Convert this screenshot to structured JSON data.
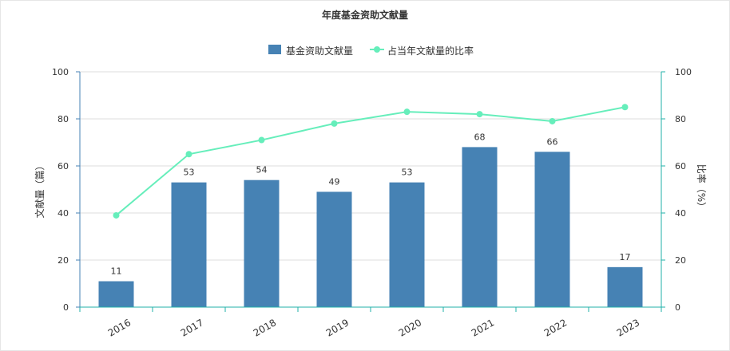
{
  "chart_data": {
    "type": "bar",
    "title": "年度基金资助文献量",
    "categories": [
      "2016",
      "2017",
      "2018",
      "2019",
      "2020",
      "2021",
      "2022",
      "2023"
    ],
    "series": [
      {
        "name": "基金资助文献量",
        "type": "bar",
        "axis": "left",
        "color": "#4682b4",
        "values": [
          11,
          53,
          54,
          49,
          53,
          68,
          66,
          17
        ],
        "data_labels": [
          "11",
          "53",
          "54",
          "49",
          "53",
          "68",
          "66",
          "17"
        ]
      },
      {
        "name": "占当年文献量的比率",
        "type": "line",
        "axis": "right",
        "color": "#66eebb",
        "values": [
          39,
          65,
          71,
          78,
          83,
          82,
          79,
          85
        ]
      }
    ],
    "ylabel_left": "文献量（篇）",
    "ylabel_right": "比率（%）",
    "ylim_left": [
      0,
      100
    ],
    "ylim_right": [
      0,
      100
    ],
    "yticks_left": [
      "0",
      "20",
      "40",
      "60",
      "80",
      "100"
    ],
    "yticks_right": [
      "0",
      "20",
      "40",
      "60",
      "80",
      "100"
    ],
    "grid": true,
    "legend_position": "top-center"
  },
  "colors": {
    "bar": "#4682b4",
    "line": "#66eebb",
    "left_axis": "#4682b4",
    "right_axis": "#20b2aa",
    "grid": "#dddddd",
    "text": "#333333"
  }
}
